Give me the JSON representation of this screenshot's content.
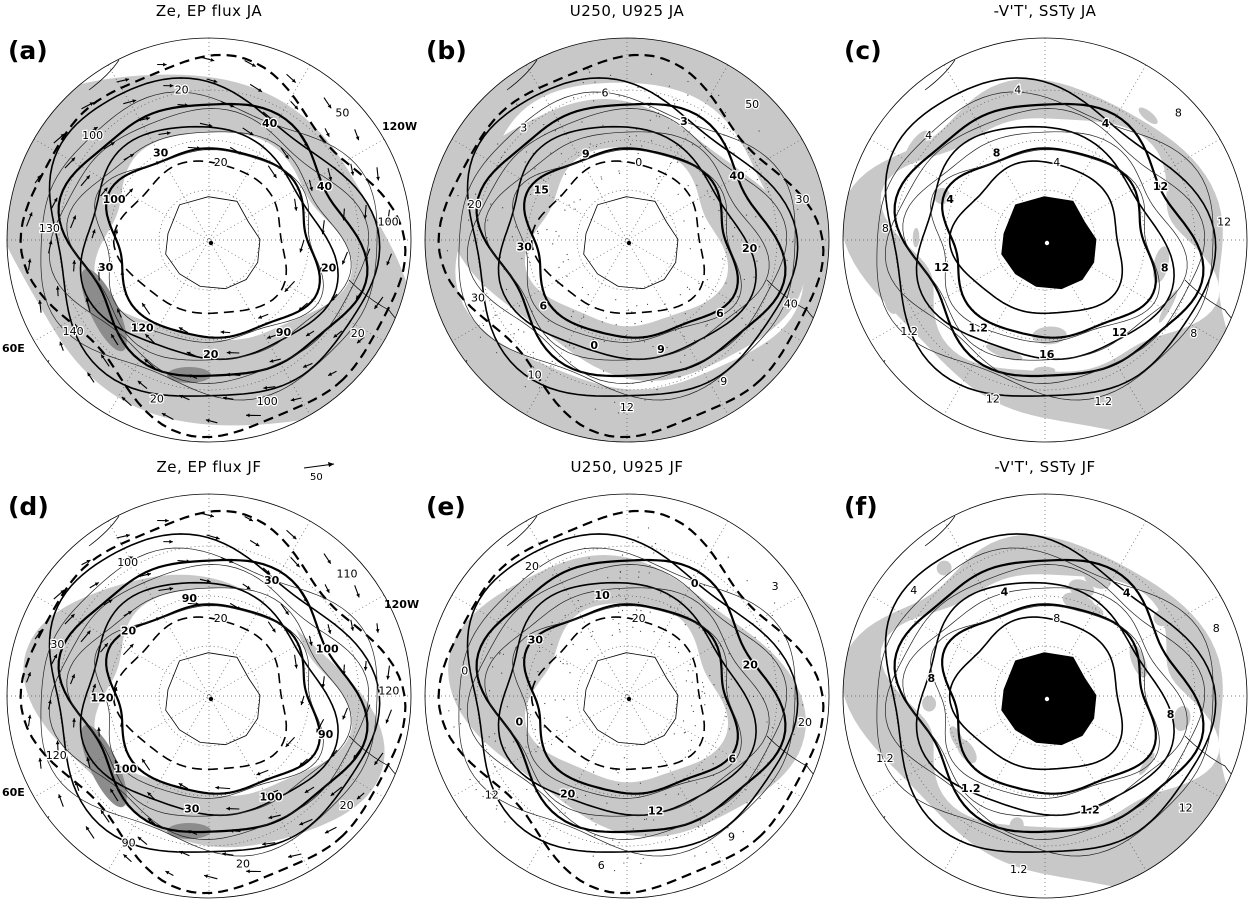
{
  "panels": [
    {
      "id": "a",
      "label": "(a)",
      "title": "Ze, EP flux JA",
      "type": "ze",
      "lon_labels": {
        "right": "120W",
        "left": "60E"
      },
      "contour_labels": [
        "20",
        "40",
        "50",
        "40",
        "100",
        "20",
        "20",
        "90",
        "100",
        "20",
        "20",
        "120",
        "140",
        "30",
        "130",
        "100",
        "100",
        "30",
        "20"
      ]
    },
    {
      "id": "b",
      "label": "(b)",
      "title": "U250, U925  JA",
      "type": "u",
      "contour_labels": [
        "0",
        "3",
        "50",
        "40",
        "30",
        "20",
        "40",
        "6",
        "9",
        "9",
        "12",
        "0",
        "10",
        "6",
        "30",
        "30",
        "20",
        "15",
        "3",
        "9",
        "6"
      ]
    },
    {
      "id": "c",
      "label": "(c)",
      "title": "-V'T', SSTy  JA",
      "type": "v",
      "contour_labels": [
        "4",
        "4",
        "8",
        "12",
        "12",
        "8",
        "8",
        "12",
        "1.2",
        "16",
        "12",
        "1.2",
        "1.2",
        "12",
        "8",
        "4",
        "4",
        "8",
        "4"
      ]
    },
    {
      "id": "d",
      "label": "(d)",
      "title": "Ze, EP flux JF",
      "type": "ze",
      "lon_labels": {
        "right": "120W",
        "left": "60E"
      },
      "contour_labels": [
        "20",
        "30",
        "110",
        "100",
        "120",
        "90",
        "20",
        "100",
        "20",
        "30",
        "90",
        "100",
        "120",
        "120",
        "30",
        "20",
        "100",
        "90"
      ]
    },
    {
      "id": "e",
      "label": "(e)",
      "title": "U250, U925  JF",
      "type": "u",
      "contour_labels": [
        "20",
        "0",
        "3",
        "20",
        "20",
        "6",
        "9",
        "12",
        "6",
        "20",
        "12",
        "0",
        "0",
        "30",
        "20",
        "10"
      ]
    },
    {
      "id": "f",
      "label": "(f)",
      "title": "-V'T', SSTy  JF",
      "type": "v",
      "contour_labels": [
        "8",
        "4",
        "8",
        "8",
        "12",
        "1.2",
        "1.2",
        "1.2",
        "1.2",
        "8",
        "4",
        "4"
      ]
    }
  ],
  "reference_vector": {
    "label": "50"
  }
}
